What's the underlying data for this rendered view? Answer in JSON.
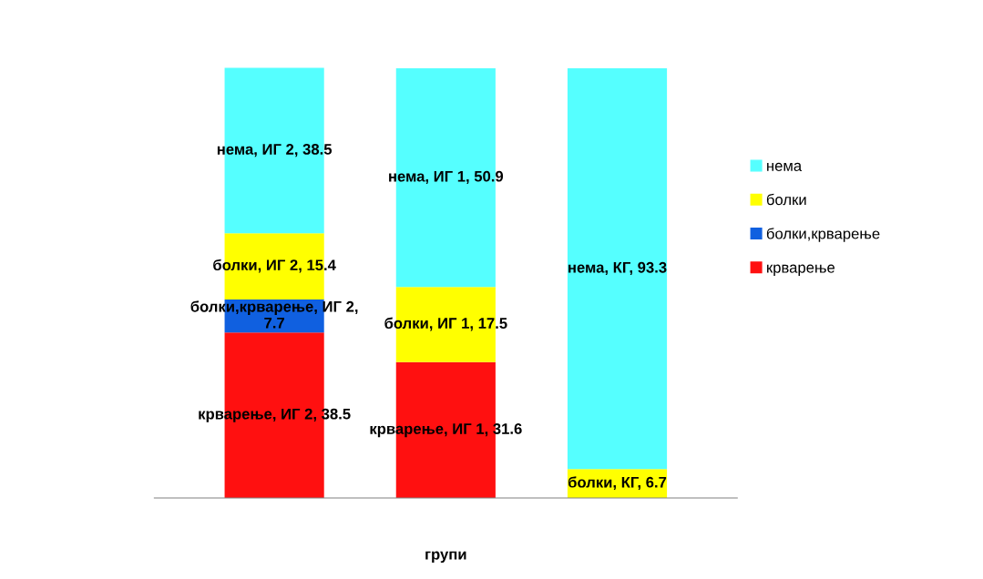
{
  "chart_data": {
    "type": "bar",
    "stacked": true,
    "xlabel": "групи",
    "categories": [
      null,
      null,
      null
    ],
    "tick_labels": false,
    "grid": false,
    "legend": "right",
    "series": [
      {
        "name": "крварење",
        "color": "#ff1010",
        "values": [
          38.5,
          31.6,
          null
        ],
        "value_labels": [
          "крварење, ИГ 2, 38.5",
          "крварење, ИГ 1, 31.6",
          null
        ]
      },
      {
        "name": "болки,крварење",
        "color": "#1060e0",
        "values": [
          7.7,
          null,
          null
        ],
        "value_labels": [
          "болки,крварење, ИГ 2, 7.7",
          null,
          null
        ]
      },
      {
        "name": "болки",
        "color": "#ffff00",
        "values": [
          15.4,
          17.5,
          6.7
        ],
        "value_labels": [
          "болки, ИГ 2, 15.4",
          "болки, ИГ 1, 17.5",
          "болки, КГ, 6.7"
        ]
      },
      {
        "name": "нема",
        "color": "#55ffff",
        "values": [
          38.5,
          50.9,
          93.3
        ],
        "value_labels": [
          "нема, ИГ 2, 38.5",
          "нема, ИГ 1, 50.9",
          "нема, КГ, 93.3"
        ]
      }
    ]
  }
}
